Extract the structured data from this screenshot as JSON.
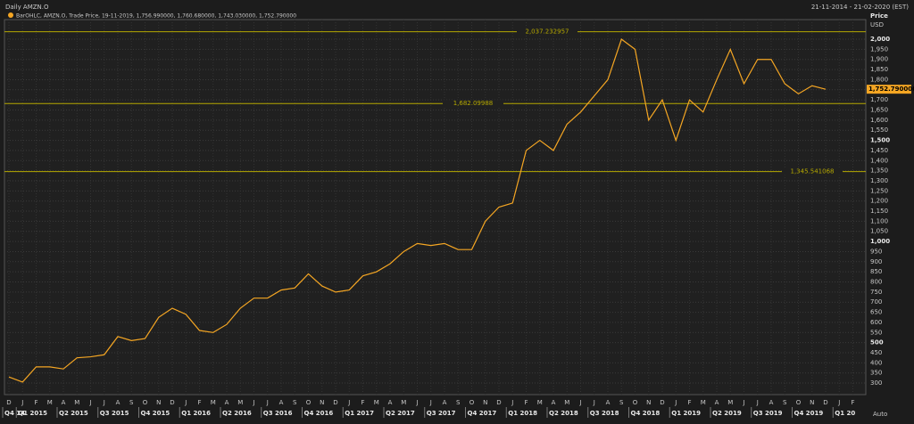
{
  "chart_data": {
    "type": "line",
    "title": "Daily AMZN.O",
    "date_range": "21-11-2014 - 21-02-2020 (EST)",
    "y_axis_label": "Price",
    "y_axis_unit": "USD",
    "scale_mode": "Auto",
    "categories": [
      "D",
      "J",
      "F",
      "M",
      "A",
      "M",
      "J",
      "J",
      "A",
      "S",
      "O",
      "N",
      "D",
      "J",
      "F",
      "M",
      "A",
      "M",
      "J",
      "J",
      "A",
      "S",
      "O",
      "N",
      "D",
      "J",
      "F",
      "M",
      "A",
      "M",
      "J",
      "J",
      "A",
      "S",
      "O",
      "N",
      "D",
      "J",
      "F",
      "M",
      "A",
      "M",
      "J",
      "J",
      "A",
      "S",
      "O",
      "N",
      "D",
      "J",
      "F",
      "M",
      "A",
      "M",
      "J",
      "J",
      "A",
      "S",
      "O",
      "N",
      "D",
      "J",
      "F"
    ],
    "quarters": [
      "Q4 14",
      "Q1 2015",
      "Q2 2015",
      "Q3 2015",
      "Q4 2015",
      "Q1 2016",
      "Q2 2016",
      "Q3 2016",
      "Q4 2016",
      "Q1 2017",
      "Q2 2017",
      "Q3 2017",
      "Q4 2017",
      "Q1 2018",
      "Q2 2018",
      "Q3 2018",
      "Q4 2018",
      "Q1 2019",
      "Q2 2019",
      "Q3 2019",
      "Q4 2019",
      "Q1 20"
    ],
    "series": [
      {
        "name": "BarOHLC, AMZN.O, Trade Price, 19-11-2019, 1,756.990000, 1,760.680000, 1,743.030000, 1,752.790000",
        "color": "#f5a623",
        "values": [
          330,
          305,
          380,
          380,
          370,
          425,
          430,
          440,
          530,
          510,
          520,
          625,
          670,
          640,
          560,
          550,
          590,
          670,
          720,
          720,
          760,
          770,
          840,
          780,
          750,
          760,
          830,
          850,
          890,
          950,
          990,
          980,
          990,
          960,
          960,
          1100,
          1170,
          1190,
          1450,
          1500,
          1450,
          1580,
          1640,
          1720,
          1800,
          2000,
          1950,
          1600,
          1700,
          1500,
          1700,
          1640,
          1800,
          1950,
          1780,
          1900,
          1900,
          1780,
          1730,
          1770,
          1752.79,
          null,
          null
        ]
      }
    ],
    "hlines": [
      {
        "value": 2037.232957,
        "label": "2,037.232957"
      },
      {
        "value": 1682.09988,
        "label": "1,682.09988"
      },
      {
        "value": 1345.541068,
        "label": "1,345.541068"
      }
    ],
    "last_price": {
      "value": 1752.79,
      "label": "1,752.790000"
    },
    "hline_color": "#b5a800",
    "grid": true,
    "ylim": [
      243,
      2097
    ],
    "yticks": [
      300,
      350,
      400,
      450,
      500,
      550,
      600,
      650,
      700,
      750,
      800,
      850,
      900,
      950,
      {
        "value": 1000,
        "label": "1,000"
      },
      {
        "value": 1050,
        "label": "1,050"
      },
      {
        "value": 1100,
        "label": "1,100"
      },
      {
        "value": 1150,
        "label": "1,150"
      },
      {
        "value": 1200,
        "label": "1,200"
      },
      {
        "value": 1250,
        "label": "1,250"
      },
      {
        "value": 1300,
        "label": "1,300"
      },
      {
        "value": 1350,
        "label": "1,350"
      },
      {
        "value": 1400,
        "label": "1,400"
      },
      {
        "value": 1450,
        "label": "1,450"
      },
      {
        "value": 1500,
        "label": "1,500"
      },
      {
        "value": 1550,
        "label": "1,550"
      },
      {
        "value": 1600,
        "label": "1,600"
      },
      {
        "value": 1650,
        "label": "1,650"
      },
      {
        "value": 1700,
        "label": "1,700"
      },
      {
        "value": 1750,
        "label": "1,750"
      },
      {
        "value": 1800,
        "label": "1,800"
      },
      {
        "value": 1850,
        "label": "1,850"
      },
      {
        "value": 1900,
        "label": "1,900"
      },
      {
        "value": 1950,
        "label": "1,950"
      },
      {
        "value": 2000,
        "label": "2,000"
      }
    ]
  }
}
